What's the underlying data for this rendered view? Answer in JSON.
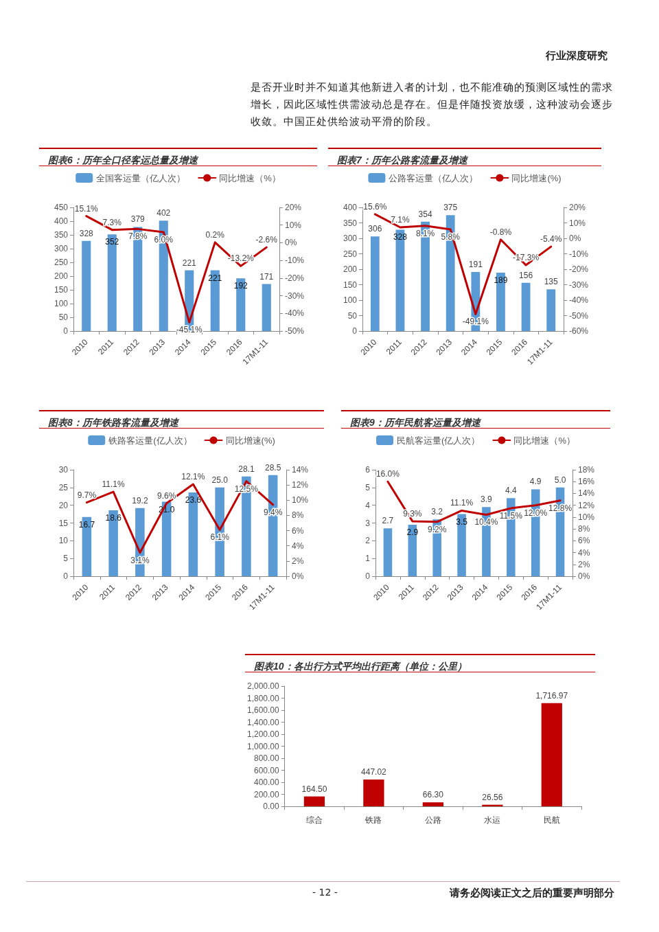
{
  "chart_data": [
    {
      "type": "bar",
      "title": "图表6：历年全口径客运总量及增速",
      "annotations": [
        "行业深度研究",
        "是否开业时并不知道其他新进入者的计划，也不能准确的预测区域性的需求增长，因此区域性供需波动总是存在。但是伴随投资放缓，这种波动会逐步收敛。中国正处供给波动平滑的阶段。"
      ],
      "categories": [
        "2010",
        "2011",
        "2012",
        "2013",
        "2014",
        "2015",
        "2016",
        "17M1-11"
      ],
      "series": [
        {
          "name": "全国客运量（亿人次）",
          "color": "#5b9bd5",
          "values": [
            328,
            352,
            379,
            402,
            221,
            221,
            192,
            171
          ],
          "value_labels": [
            "328",
            "352",
            "379",
            "402",
            "221",
            "221",
            "192",
            "171"
          ]
        },
        {
          "name": "同比增速（%）",
          "type": "line",
          "axis": "y2",
          "color": "#c00000",
          "values": [
            15.1,
            7.3,
            7.8,
            6.0,
            -45.1,
            0.2,
            -13.2,
            -2.6
          ],
          "value_labels": [
            "15.1%",
            "7.3%",
            "7.8%",
            "6.0%",
            "-45.1%",
            "0.2%",
            "-13.2%",
            "-2.6%"
          ]
        }
      ],
      "ylim": [
        0,
        450
      ],
      "yticks": [
        0,
        50,
        100,
        150,
        200,
        250,
        300,
        350,
        400,
        450
      ],
      "y2lim": [
        -50,
        20
      ],
      "y2ticks": [
        {
          "value": -50,
          "label": "-50%"
        },
        {
          "value": -40,
          "label": "-40%"
        },
        {
          "value": -30,
          "label": "-30%"
        },
        {
          "value": -20,
          "label": "-20%"
        },
        {
          "value": -10,
          "label": "-10%"
        },
        {
          "value": 0,
          "label": "0%"
        },
        {
          "value": 10,
          "label": "10%"
        },
        {
          "value": 20,
          "label": "20%"
        }
      ],
      "legend": "top",
      "marker": "none",
      "grid": false
    },
    {
      "type": "bar",
      "title": "图表7：历年公路客流量及增速",
      "categories": [
        "2010",
        "2011",
        "2012",
        "2013",
        "2014",
        "2015",
        "2016",
        "17M1-11"
      ],
      "series": [
        {
          "name": "公路客运量（亿人次）",
          "color": "#5b9bd5",
          "values": [
            306,
            328,
            354,
            375,
            191,
            189,
            156,
            135
          ],
          "value_labels": [
            "306",
            "328",
            "354",
            "375",
            "191",
            "189",
            "156",
            "135"
          ]
        },
        {
          "name": "同比增速(%)",
          "type": "line",
          "axis": "y2",
          "color": "#c00000",
          "values": [
            15.6,
            7.1,
            8.1,
            5.8,
            -49.1,
            -0.8,
            -17.3,
            -5.4
          ],
          "value_labels": [
            "15.6%",
            "7.1%",
            "8.1%",
            "5.8%",
            "-49.1%",
            "-0.8%",
            "-17.3%",
            "-5.4%"
          ]
        }
      ],
      "ylim": [
        0,
        400
      ],
      "yticks": [
        0,
        50,
        100,
        150,
        200,
        250,
        300,
        350,
        400
      ],
      "y2lim": [
        -60,
        20
      ],
      "y2ticks": [
        {
          "value": -60,
          "label": "-60%"
        },
        {
          "value": -50,
          "label": "-50%"
        },
        {
          "value": -40,
          "label": "-40%"
        },
        {
          "value": -30,
          "label": "-30%"
        },
        {
          "value": -20,
          "label": "-20%"
        },
        {
          "value": -10,
          "label": "-10%"
        },
        {
          "value": 0,
          "label": "0%"
        },
        {
          "value": 10,
          "label": "10%"
        },
        {
          "value": 20,
          "label": "20%"
        }
      ],
      "legend": "top",
      "marker": "none",
      "grid": false
    },
    {
      "type": "bar",
      "title": "图表8：历年铁路客流量及增速",
      "categories": [
        "2010",
        "2011",
        "2012",
        "2013",
        "2014",
        "2015",
        "2016",
        "17M1-11"
      ],
      "series": [
        {
          "name": "铁路客运量(亿人次）",
          "color": "#5b9bd5",
          "values": [
            16.7,
            18.6,
            19.2,
            21.0,
            23.6,
            25.0,
            28.1,
            28.5
          ],
          "value_labels": [
            "16.7",
            "18.6",
            "19.2",
            "21.0",
            "23.6",
            "25.0",
            "28.1",
            "28.5"
          ]
        },
        {
          "name": "同比增速(%)",
          "type": "line",
          "axis": "y2",
          "color": "#c00000",
          "values": [
            9.7,
            11.1,
            3.1,
            9.6,
            12.1,
            6.1,
            12.5,
            9.4
          ],
          "value_labels": [
            "9.7%",
            "11.1%",
            "3.1%",
            "9.6%",
            "12.1%",
            "6.1%",
            "12.5%",
            "9.4%"
          ]
        }
      ],
      "ylim": [
        0,
        30
      ],
      "yticks": [
        0,
        5,
        10,
        15,
        20,
        25,
        30
      ],
      "y2lim": [
        0,
        14
      ],
      "y2ticks": [
        {
          "value": 0,
          "label": "0%"
        },
        {
          "value": 2,
          "label": "2%"
        },
        {
          "value": 4,
          "label": "4%"
        },
        {
          "value": 6,
          "label": "6%"
        },
        {
          "value": 8,
          "label": "8%"
        },
        {
          "value": 10,
          "label": "10%"
        },
        {
          "value": 12,
          "label": "12%"
        },
        {
          "value": 14,
          "label": "14%"
        }
      ],
      "legend": "top",
      "marker": "none",
      "grid": false
    },
    {
      "type": "bar",
      "title": "图表9：历年民航客运量及增速",
      "categories": [
        "2010",
        "2011",
        "2012",
        "2013",
        "2014",
        "2015",
        "2016",
        "17M1-11"
      ],
      "series": [
        {
          "name": "民航客运量(亿人次）",
          "color": "#5b9bd5",
          "values": [
            2.7,
            2.9,
            3.2,
            3.5,
            3.9,
            4.4,
            4.9,
            5.0
          ],
          "value_labels": [
            "2.7",
            "2.9",
            "3.2",
            "3.5",
            "3.9",
            "4.4",
            "4.9",
            "5.0"
          ]
        },
        {
          "name": "同比增速（%）",
          "type": "line",
          "axis": "y2",
          "color": "#c00000",
          "values": [
            16.0,
            9.3,
            9.2,
            11.1,
            10.4,
            11.5,
            12.0,
            12.8
          ],
          "value_labels": [
            "16.0%",
            "9.3%",
            "9.2%",
            "11.1%",
            "10.4%",
            "11.5%",
            "12.0%",
            "12.8%"
          ]
        }
      ],
      "ylim": [
        0,
        6
      ],
      "yticks": [
        0,
        1,
        2,
        3,
        4,
        5,
        6
      ],
      "y2lim": [
        0,
        18
      ],
      "y2ticks": [
        {
          "value": 0,
          "label": "0%"
        },
        {
          "value": 2,
          "label": "2%"
        },
        {
          "value": 4,
          "label": "4%"
        },
        {
          "value": 6,
          "label": "6%"
        },
        {
          "value": 8,
          "label": "8%"
        },
        {
          "value": 10,
          "label": "10%"
        },
        {
          "value": 12,
          "label": "12%"
        },
        {
          "value": 14,
          "label": "14%"
        },
        {
          "value": 16,
          "label": "16%"
        },
        {
          "value": 18,
          "label": "18%"
        }
      ],
      "legend": "top",
      "marker": "none",
      "grid": false
    },
    {
      "type": "bar",
      "title": "图表10：各出行方式平均出行距离（单位：公里）",
      "annotations": [
        "- 12 -",
        "请务必阅读正文之后的重要声明部分"
      ],
      "categories": [
        "综合",
        "铁路",
        "公路",
        "水运",
        "民航"
      ],
      "series": [
        {
          "color": "#c00000",
          "values": [
            164.5,
            447.02,
            66.3,
            26.56,
            1716.97
          ],
          "value_labels": [
            "164.50",
            "447.02",
            "66.30",
            "26.56",
            "1,716.97"
          ]
        }
      ],
      "ylim": [
        0,
        2000
      ],
      "yticks": [
        {
          "value": 0,
          "label": "0.00"
        },
        {
          "value": 200,
          "label": "200.00"
        },
        {
          "value": 400,
          "label": "400.00"
        },
        {
          "value": 600,
          "label": "600.00"
        },
        {
          "value": 800,
          "label": "800.00"
        },
        {
          "value": 1000,
          "label": "1,000.00"
        },
        {
          "value": 1200,
          "label": "1,200.00"
        },
        {
          "value": 1400,
          "label": "1,400.00"
        },
        {
          "value": 1600,
          "label": "1,600.00"
        },
        {
          "value": 1800,
          "label": "1,800.00"
        },
        {
          "value": 2000,
          "label": "2,000.00"
        }
      ],
      "grid": false
    }
  ]
}
